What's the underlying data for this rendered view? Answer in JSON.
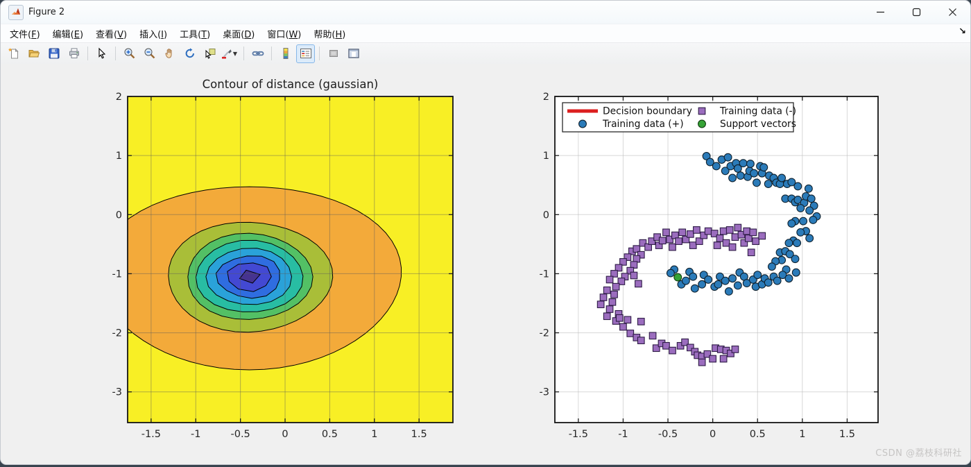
{
  "window": {
    "title": "Figure 2",
    "app_icon": "matlab-logo",
    "controls": [
      {
        "name": "minimize"
      },
      {
        "name": "maximize"
      },
      {
        "name": "close"
      }
    ]
  },
  "menu": {
    "items": [
      {
        "label": "文件(F)",
        "key": "F"
      },
      {
        "label": "编辑(E)",
        "key": "E"
      },
      {
        "label": "查看(V)",
        "key": "V"
      },
      {
        "label": "插入(I)",
        "key": "I"
      },
      {
        "label": "工具(T)",
        "key": "T"
      },
      {
        "label": "桌面(D)",
        "key": "D"
      },
      {
        "label": "窗口(W)",
        "key": "W"
      },
      {
        "label": "帮助(H)",
        "key": "H"
      }
    ],
    "dock_arrow_glyph": "↘"
  },
  "toolbar": {
    "items": [
      {
        "name": "new-figure"
      },
      {
        "name": "open-file"
      },
      {
        "name": "save-figure"
      },
      {
        "name": "print-figure"
      },
      {
        "name": "edit-plot-arrow"
      },
      {
        "name": "zoom-in"
      },
      {
        "name": "zoom-out"
      },
      {
        "name": "pan-hand"
      },
      {
        "name": "rotate-3d"
      },
      {
        "name": "data-cursor"
      },
      {
        "name": "brush-data",
        "dropdown": true
      },
      {
        "name": "link-plot"
      },
      {
        "name": "insert-colorbar"
      },
      {
        "name": "insert-legend",
        "active": true
      },
      {
        "name": "hide-plot-tools"
      },
      {
        "name": "show-plot-tools"
      }
    ]
  },
  "watermark": "CSDN @荔枝科研社",
  "chart_data": [
    {
      "type": "contour",
      "title": "Contour of distance (gaussian)",
      "xlim": [
        -1.763,
        1.879
      ],
      "ylim": [
        -3.52,
        2.0
      ],
      "xticks": [
        "-1.5",
        "-1",
        "-0.5",
        "0",
        "0.5",
        "1",
        "1.5"
      ],
      "ytick_vals": [
        2,
        1,
        0,
        -1,
        -2,
        -3
      ],
      "yticks": [
        "2",
        "1",
        "0",
        "-1",
        "-2",
        "-3"
      ],
      "xtick_vals": [
        -1.5,
        -1,
        -0.5,
        0,
        0.5,
        1,
        1.5
      ],
      "grid": true,
      "background_level_color": "#f8ef25",
      "contour_line_color": "#000000",
      "center": [
        -0.4,
        -1.05
      ],
      "levels": [
        {
          "rx": 1.7,
          "ry": 1.55,
          "color": "#f3aa3a"
        },
        {
          "rx": 0.92,
          "ry": 0.93,
          "color": "#a9be38"
        },
        {
          "rx": 0.7,
          "ry": 0.73,
          "color": "#53c065"
        },
        {
          "rx": 0.6,
          "ry": 0.61,
          "color": "#28bda3"
        },
        {
          "rx": 0.48,
          "ry": 0.48,
          "color": "#2aa2d9"
        },
        {
          "rx": 0.36,
          "ry": 0.36,
          "color": "#2f6de0"
        },
        {
          "rx": 0.25,
          "ry": 0.245,
          "color": "#4349d3"
        },
        {
          "rx": 0.12,
          "ry": 0.115,
          "color": "#463390"
        }
      ]
    },
    {
      "type": "scatter",
      "title": "",
      "xlim": [
        -1.762,
        1.845
      ],
      "ylim": [
        -3.52,
        2.0
      ],
      "xticks": [
        "-1.5",
        "-1",
        "-0.5",
        "0",
        "0.5",
        "1",
        "1.5"
      ],
      "xtick_vals": [
        -1.5,
        -1,
        -0.5,
        0,
        0.5,
        1,
        1.5
      ],
      "yticks": [
        "2",
        "1",
        "0",
        "-1",
        "-2",
        "-3"
      ],
      "ytick_vals": [
        2,
        1,
        0,
        -1,
        -2,
        -3
      ],
      "grid": true,
      "legend": {
        "position": "northwest",
        "columns": 2,
        "items": [
          {
            "label": "Decision boundary",
            "marker": "line",
            "color": "#dc1f1f",
            "edge": "#dc1f1f"
          },
          {
            "label": "Training data (+)",
            "marker": "circle",
            "color": "#2b7bb9",
            "edge": "#10222f"
          },
          {
            "label": "Training data (-)",
            "marker": "square",
            "color": "#9b6dbe",
            "edge": "#2d1b45"
          },
          {
            "label": "Support vectors",
            "marker": "circle",
            "color": "#36a336",
            "edge": "#0f3d0f"
          }
        ]
      },
      "series": [
        {
          "name": "Training data (+)",
          "marker": "circle",
          "color": "#2b7bb9",
          "edge": "#10222f",
          "points": [
            [
              -0.07,
              0.99
            ],
            [
              -0.03,
              0.89
            ],
            [
              0.04,
              0.82
            ],
            [
              0.1,
              0.93
            ],
            [
              0.17,
              0.97
            ],
            [
              0.14,
              0.74
            ],
            [
              0.2,
              0.82
            ],
            [
              0.22,
              0.62
            ],
            [
              0.26,
              0.87
            ],
            [
              0.28,
              0.78
            ],
            [
              0.31,
              0.66
            ],
            [
              0.34,
              0.87
            ],
            [
              0.39,
              0.64
            ],
            [
              0.41,
              0.74
            ],
            [
              0.42,
              0.86
            ],
            [
              0.46,
              0.7
            ],
            [
              0.49,
              0.54
            ],
            [
              0.53,
              0.82
            ],
            [
              0.55,
              0.7
            ],
            [
              0.57,
              0.8
            ],
            [
              0.62,
              0.52
            ],
            [
              0.63,
              0.66
            ],
            [
              0.68,
              0.62
            ],
            [
              0.71,
              0.54
            ],
            [
              0.75,
              0.52
            ],
            [
              0.77,
              0.62
            ],
            [
              0.83,
              0.52
            ],
            [
              0.88,
              0.55
            ],
            [
              0.95,
              0.48
            ],
            [
              1.07,
              0.44
            ],
            [
              0.81,
              0.27
            ],
            [
              0.88,
              0.27
            ],
            [
              0.92,
              0.21
            ],
            [
              0.95,
              0.25
            ],
            [
              1.02,
              0.2
            ],
            [
              1.04,
              0.31
            ],
            [
              1.1,
              0.27
            ],
            [
              1.13,
              0.15
            ],
            [
              0.98,
              0.11
            ],
            [
              1.08,
              0.07
            ],
            [
              1.16,
              -0.03
            ],
            [
              1.12,
              -0.09
            ],
            [
              1.01,
              -0.11
            ],
            [
              0.92,
              -0.11
            ],
            [
              0.88,
              -0.15
            ],
            [
              1.04,
              -0.28
            ],
            [
              0.98,
              -0.3
            ],
            [
              1.08,
              -0.4
            ],
            [
              0.9,
              -0.44
            ],
            [
              0.94,
              -0.48
            ],
            [
              0.85,
              -0.48
            ],
            [
              0.75,
              -0.64
            ],
            [
              0.81,
              -0.62
            ],
            [
              0.86,
              -0.67
            ],
            [
              0.92,
              -0.75
            ],
            [
              0.77,
              -0.77
            ],
            [
              0.7,
              -0.79
            ],
            [
              0.82,
              -0.93
            ],
            [
              0.66,
              -0.88
            ],
            [
              -0.43,
              -0.93
            ],
            [
              -0.47,
              -0.99
            ],
            [
              -0.35,
              -1.18
            ],
            [
              -0.3,
              -1.12
            ],
            [
              -0.26,
              -0.97
            ],
            [
              -0.22,
              -1.05
            ],
            [
              -0.2,
              -1.25
            ],
            [
              -0.12,
              -1.18
            ],
            [
              -0.1,
              -1.02
            ],
            [
              -0.05,
              -1.1
            ],
            [
              0.02,
              -1.22
            ],
            [
              0.06,
              -1.18
            ],
            [
              0.08,
              -1.05
            ],
            [
              0.14,
              -1.12
            ],
            [
              0.18,
              -1.3
            ],
            [
              0.22,
              -1.08
            ],
            [
              0.28,
              -1.2
            ],
            [
              0.3,
              -0.98
            ],
            [
              0.35,
              -1.05
            ],
            [
              0.38,
              -1.16
            ],
            [
              0.45,
              -1.1
            ],
            [
              0.48,
              -1.22
            ],
            [
              0.5,
              -1.02
            ],
            [
              0.55,
              -1.18
            ],
            [
              0.58,
              -1.08
            ],
            [
              0.62,
              -1.15
            ],
            [
              0.68,
              -1.05
            ],
            [
              0.72,
              -1.12
            ],
            [
              0.78,
              -1.02
            ],
            [
              0.85,
              -1.08
            ],
            [
              0.93,
              -0.98
            ]
          ]
        },
        {
          "name": "Training data (-)",
          "marker": "square",
          "color": "#9b6dbe",
          "edge": "#2d1b45",
          "points": [
            [
              -0.9,
              -0.62
            ],
            [
              -0.85,
              -0.58
            ],
            [
              -0.8,
              -0.68
            ],
            [
              -0.78,
              -0.48
            ],
            [
              -0.72,
              -0.55
            ],
            [
              -0.68,
              -0.45
            ],
            [
              -0.62,
              -0.38
            ],
            [
              -0.6,
              -0.52
            ],
            [
              -0.56,
              -0.44
            ],
            [
              -0.52,
              -0.3
            ],
            [
              -0.48,
              -0.42
            ],
            [
              -0.45,
              -0.55
            ],
            [
              -0.42,
              -0.35
            ],
            [
              -0.38,
              -0.45
            ],
            [
              -0.34,
              -0.3
            ],
            [
              -0.3,
              -0.42
            ],
            [
              -0.25,
              -0.33
            ],
            [
              -0.22,
              -0.52
            ],
            [
              -0.18,
              -0.26
            ],
            [
              -0.15,
              -0.45
            ],
            [
              -0.1,
              -0.35
            ],
            [
              -0.05,
              -0.28
            ],
            [
              0.02,
              -0.32
            ],
            [
              0.05,
              -0.52
            ],
            [
              0.08,
              -0.4
            ],
            [
              0.12,
              -0.28
            ],
            [
              0.15,
              -0.48
            ],
            [
              0.19,
              -0.26
            ],
            [
              0.22,
              -0.55
            ],
            [
              0.25,
              -0.38
            ],
            [
              0.28,
              -0.22
            ],
            [
              0.32,
              -0.34
            ],
            [
              0.35,
              -0.48
            ],
            [
              0.38,
              -0.28
            ],
            [
              0.4,
              -0.4
            ],
            [
              0.43,
              -0.64
            ],
            [
              0.45,
              -0.3
            ],
            [
              0.48,
              -0.45
            ],
            [
              0.55,
              -0.36
            ],
            [
              -0.85,
              -0.75
            ],
            [
              -0.95,
              -0.72
            ],
            [
              -0.88,
              -0.85
            ],
            [
              -1.0,
              -0.8
            ],
            [
              -0.92,
              -0.95
            ],
            [
              -1.05,
              -0.9
            ],
            [
              -1.1,
              -1.0
            ],
            [
              -0.98,
              -1.05
            ],
            [
              -1.02,
              -1.13
            ],
            [
              -0.88,
              -1.03
            ],
            [
              -0.83,
              -1.17
            ],
            [
              -1.15,
              -1.1
            ],
            [
              -1.08,
              -1.22
            ],
            [
              -1.18,
              -1.28
            ],
            [
              -1.1,
              -1.35
            ],
            [
              -1.22,
              -1.4
            ],
            [
              -1.12,
              -1.48
            ],
            [
              -1.25,
              -1.52
            ],
            [
              -1.15,
              -1.6
            ],
            [
              -1.18,
              -1.72
            ],
            [
              -1.05,
              -1.68
            ],
            [
              -1.08,
              -1.8
            ],
            [
              -0.95,
              -1.78
            ],
            [
              -1.04,
              -1.75
            ],
            [
              -1.0,
              -1.9
            ],
            [
              -0.92,
              -2.01
            ],
            [
              -0.8,
              -1.81
            ],
            [
              -0.85,
              -2.08
            ],
            [
              -0.8,
              -2.13
            ],
            [
              -0.67,
              -2.05
            ],
            [
              -0.63,
              -2.26
            ],
            [
              -0.57,
              -2.18
            ],
            [
              -0.52,
              -2.22
            ],
            [
              -0.45,
              -2.3
            ],
            [
              -0.36,
              -2.22
            ],
            [
              -0.31,
              -2.16
            ],
            [
              -0.25,
              -2.25
            ],
            [
              -0.2,
              -2.32
            ],
            [
              -0.17,
              -2.38
            ],
            [
              -0.12,
              -2.4
            ],
            [
              -0.12,
              -2.5
            ],
            [
              -0.06,
              -2.36
            ],
            [
              0.0,
              -2.44
            ],
            [
              0.03,
              -2.26
            ],
            [
              0.09,
              -2.28
            ],
            [
              0.12,
              -2.44
            ],
            [
              0.15,
              -2.3
            ],
            [
              0.2,
              -2.35
            ],
            [
              0.25,
              -2.28
            ]
          ]
        },
        {
          "name": "Support vectors",
          "marker": "circle",
          "color": "#36a336",
          "edge": "#0f3d0f",
          "points": [
            [
              -0.39,
              -1.06
            ]
          ]
        },
        {
          "name": "Decision boundary",
          "marker": "line",
          "color": "#dc1f1f",
          "points": []
        }
      ]
    }
  ]
}
